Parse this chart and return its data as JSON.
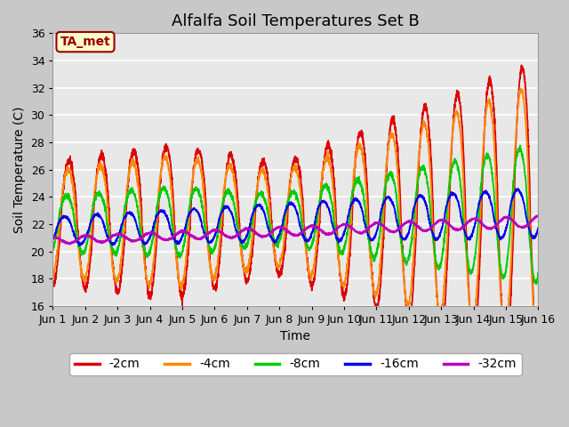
{
  "title": "Alfalfa Soil Temperatures Set B",
  "xlabel": "Time",
  "ylabel": "Soil Temperature (C)",
  "ylim": [
    16,
    36
  ],
  "xlim": [
    0,
    15
  ],
  "xtick_labels": [
    "Jun 1",
    "Jun 2",
    "Jun 3",
    "Jun 4",
    "Jun 5",
    "Jun 6",
    "Jun 7",
    "Jun 8",
    "Jun 9",
    "Jun 10",
    "Jun 11",
    "Jun 12",
    "Jun 13",
    "Jun 14",
    "Jun 15",
    "Jun 16"
  ],
  "ytick_labels": [
    "16",
    "18",
    "20",
    "22",
    "24",
    "26",
    "28",
    "30",
    "32",
    "34",
    "36"
  ],
  "ytick_values": [
    16,
    18,
    20,
    22,
    24,
    26,
    28,
    30,
    32,
    34,
    36
  ],
  "series": [
    {
      "label": "-2cm",
      "color": "#dd0000"
    },
    {
      "label": "-4cm",
      "color": "#ff8800"
    },
    {
      "label": "-8cm",
      "color": "#00cc00"
    },
    {
      "label": "-16cm",
      "color": "#0000ee"
    },
    {
      "label": "-32cm",
      "color": "#bb00bb"
    }
  ],
  "annotation": "TA_met",
  "annotation_color": "#990000",
  "annotation_bg": "#ffffcc",
  "fig_bg": "#c8c8c8",
  "plot_bg": "#e8e8e8",
  "title_fontsize": 13,
  "axis_fontsize": 10,
  "tick_fontsize": 9,
  "legend_fontsize": 10
}
